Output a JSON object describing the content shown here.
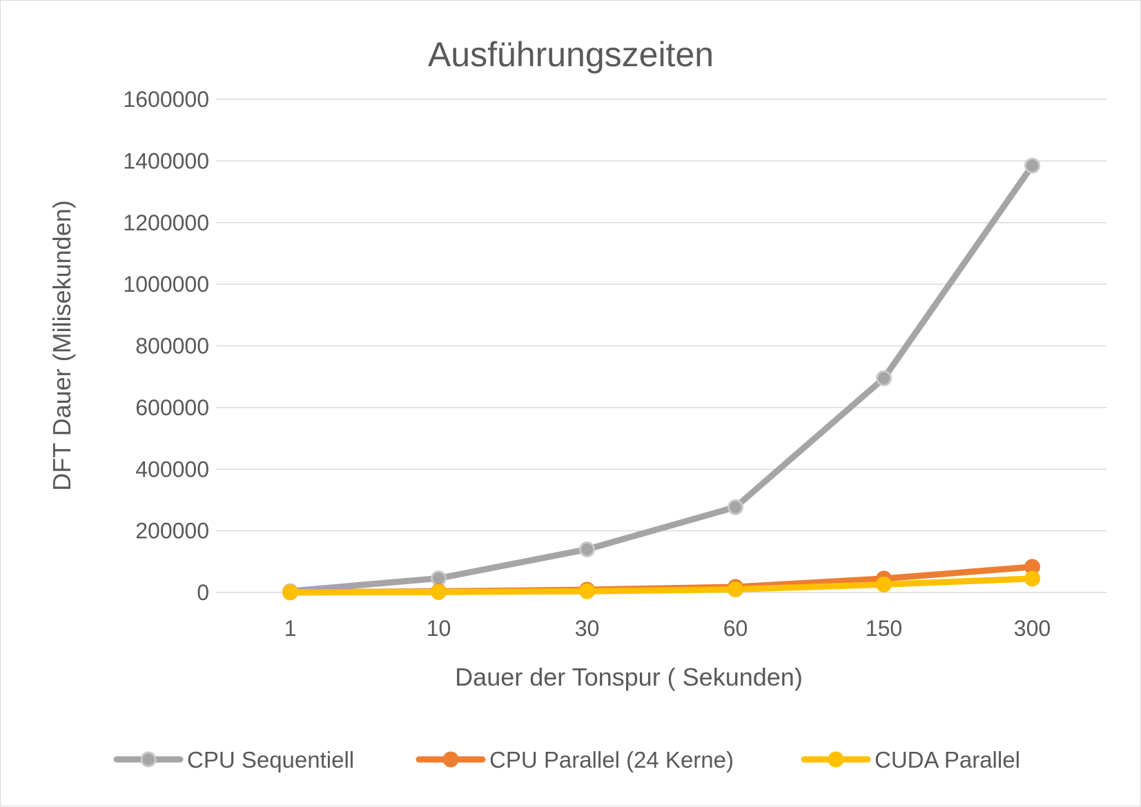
{
  "chart_data": {
    "type": "line",
    "title": "Ausführungszeiten",
    "xlabel": "Dauer der Tonspur ( Sekunden)",
    "ylabel": "DFT Dauer (Milisekunden)",
    "categories": [
      "1",
      "10",
      "30",
      "60",
      "150",
      "300"
    ],
    "ylim": [
      0,
      1600000
    ],
    "yticks": [
      "0",
      "200000",
      "400000",
      "600000",
      "800000",
      "1000000",
      "1200000",
      "1400000",
      "1600000"
    ],
    "grid": true,
    "legend": "bottom",
    "series": [
      {
        "name": "CPU Sequentiell",
        "color": "#a5a5a5",
        "values": [
          4500,
          46000,
          140000,
          277000,
          695000,
          1385000
        ]
      },
      {
        "name": "CPU Parallel (24 Kerne)",
        "color": "#ed7d31",
        "values": [
          400,
          3500,
          9000,
          18000,
          45000,
          83000
        ]
      },
      {
        "name": "CUDA Parallel",
        "color": "#ffc000",
        "values": [
          200,
          1500,
          4000,
          10000,
          26000,
          45000
        ]
      }
    ]
  }
}
